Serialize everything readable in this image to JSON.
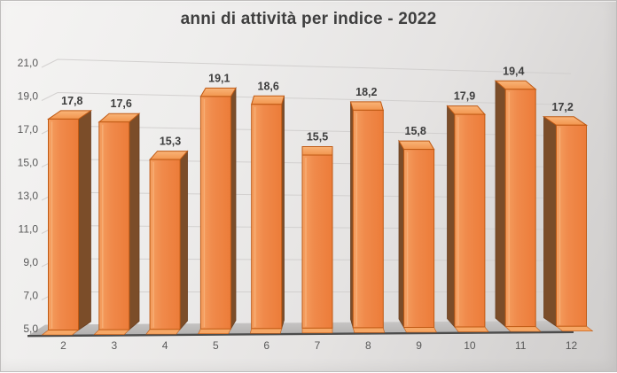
{
  "chart_data": {
    "type": "bar",
    "style": "3d-clustered-column",
    "title": "anni di attività per indice - 2022",
    "categories": [
      "2",
      "3",
      "4",
      "5",
      "6",
      "7",
      "8",
      "9",
      "10",
      "11",
      "12"
    ],
    "values": [
      17.8,
      17.6,
      15.3,
      19.1,
      18.6,
      15.5,
      18.2,
      15.8,
      17.9,
      19.4,
      17.2
    ],
    "value_labels": [
      "17,8",
      "17,6",
      "15,3",
      "19,1",
      "18,6",
      "15,5",
      "18,2",
      "15,8",
      "17,9",
      "19,4",
      "17,2"
    ],
    "xlabel": "",
    "ylabel": "",
    "ylim": [
      5,
      21
    ],
    "ytick_step": 2,
    "ytick_labels": [
      "5,0",
      "7,0",
      "9,0",
      "11,0",
      "13,0",
      "15,0",
      "17,0",
      "19,0",
      "21,0"
    ],
    "grid": true,
    "legend": "none",
    "colors": {
      "title": "#3f3f3f",
      "data_label": "#3d3d3d",
      "axis_label": "#595959",
      "gridline": "#cfcdcc",
      "bar_front": "#f08a4b",
      "bar_front_light": "#f5a061",
      "bar_front_dark": "#ec7c39",
      "bar_top_light": "#f9b478",
      "bar_top_dark": "#f2954e",
      "bar_bottom": "#f6a765",
      "bar_side_dark": "#7b4d29",
      "bar_side_edge": "#6b4022",
      "bar_border": "#c05a14",
      "floor_light": "#c9c7c6",
      "floor_dark": "#b1afae",
      "floor_edge": "#4c4c4c",
      "background_light": "#f5f4f3",
      "background_dark": "#cfcdcc"
    }
  }
}
